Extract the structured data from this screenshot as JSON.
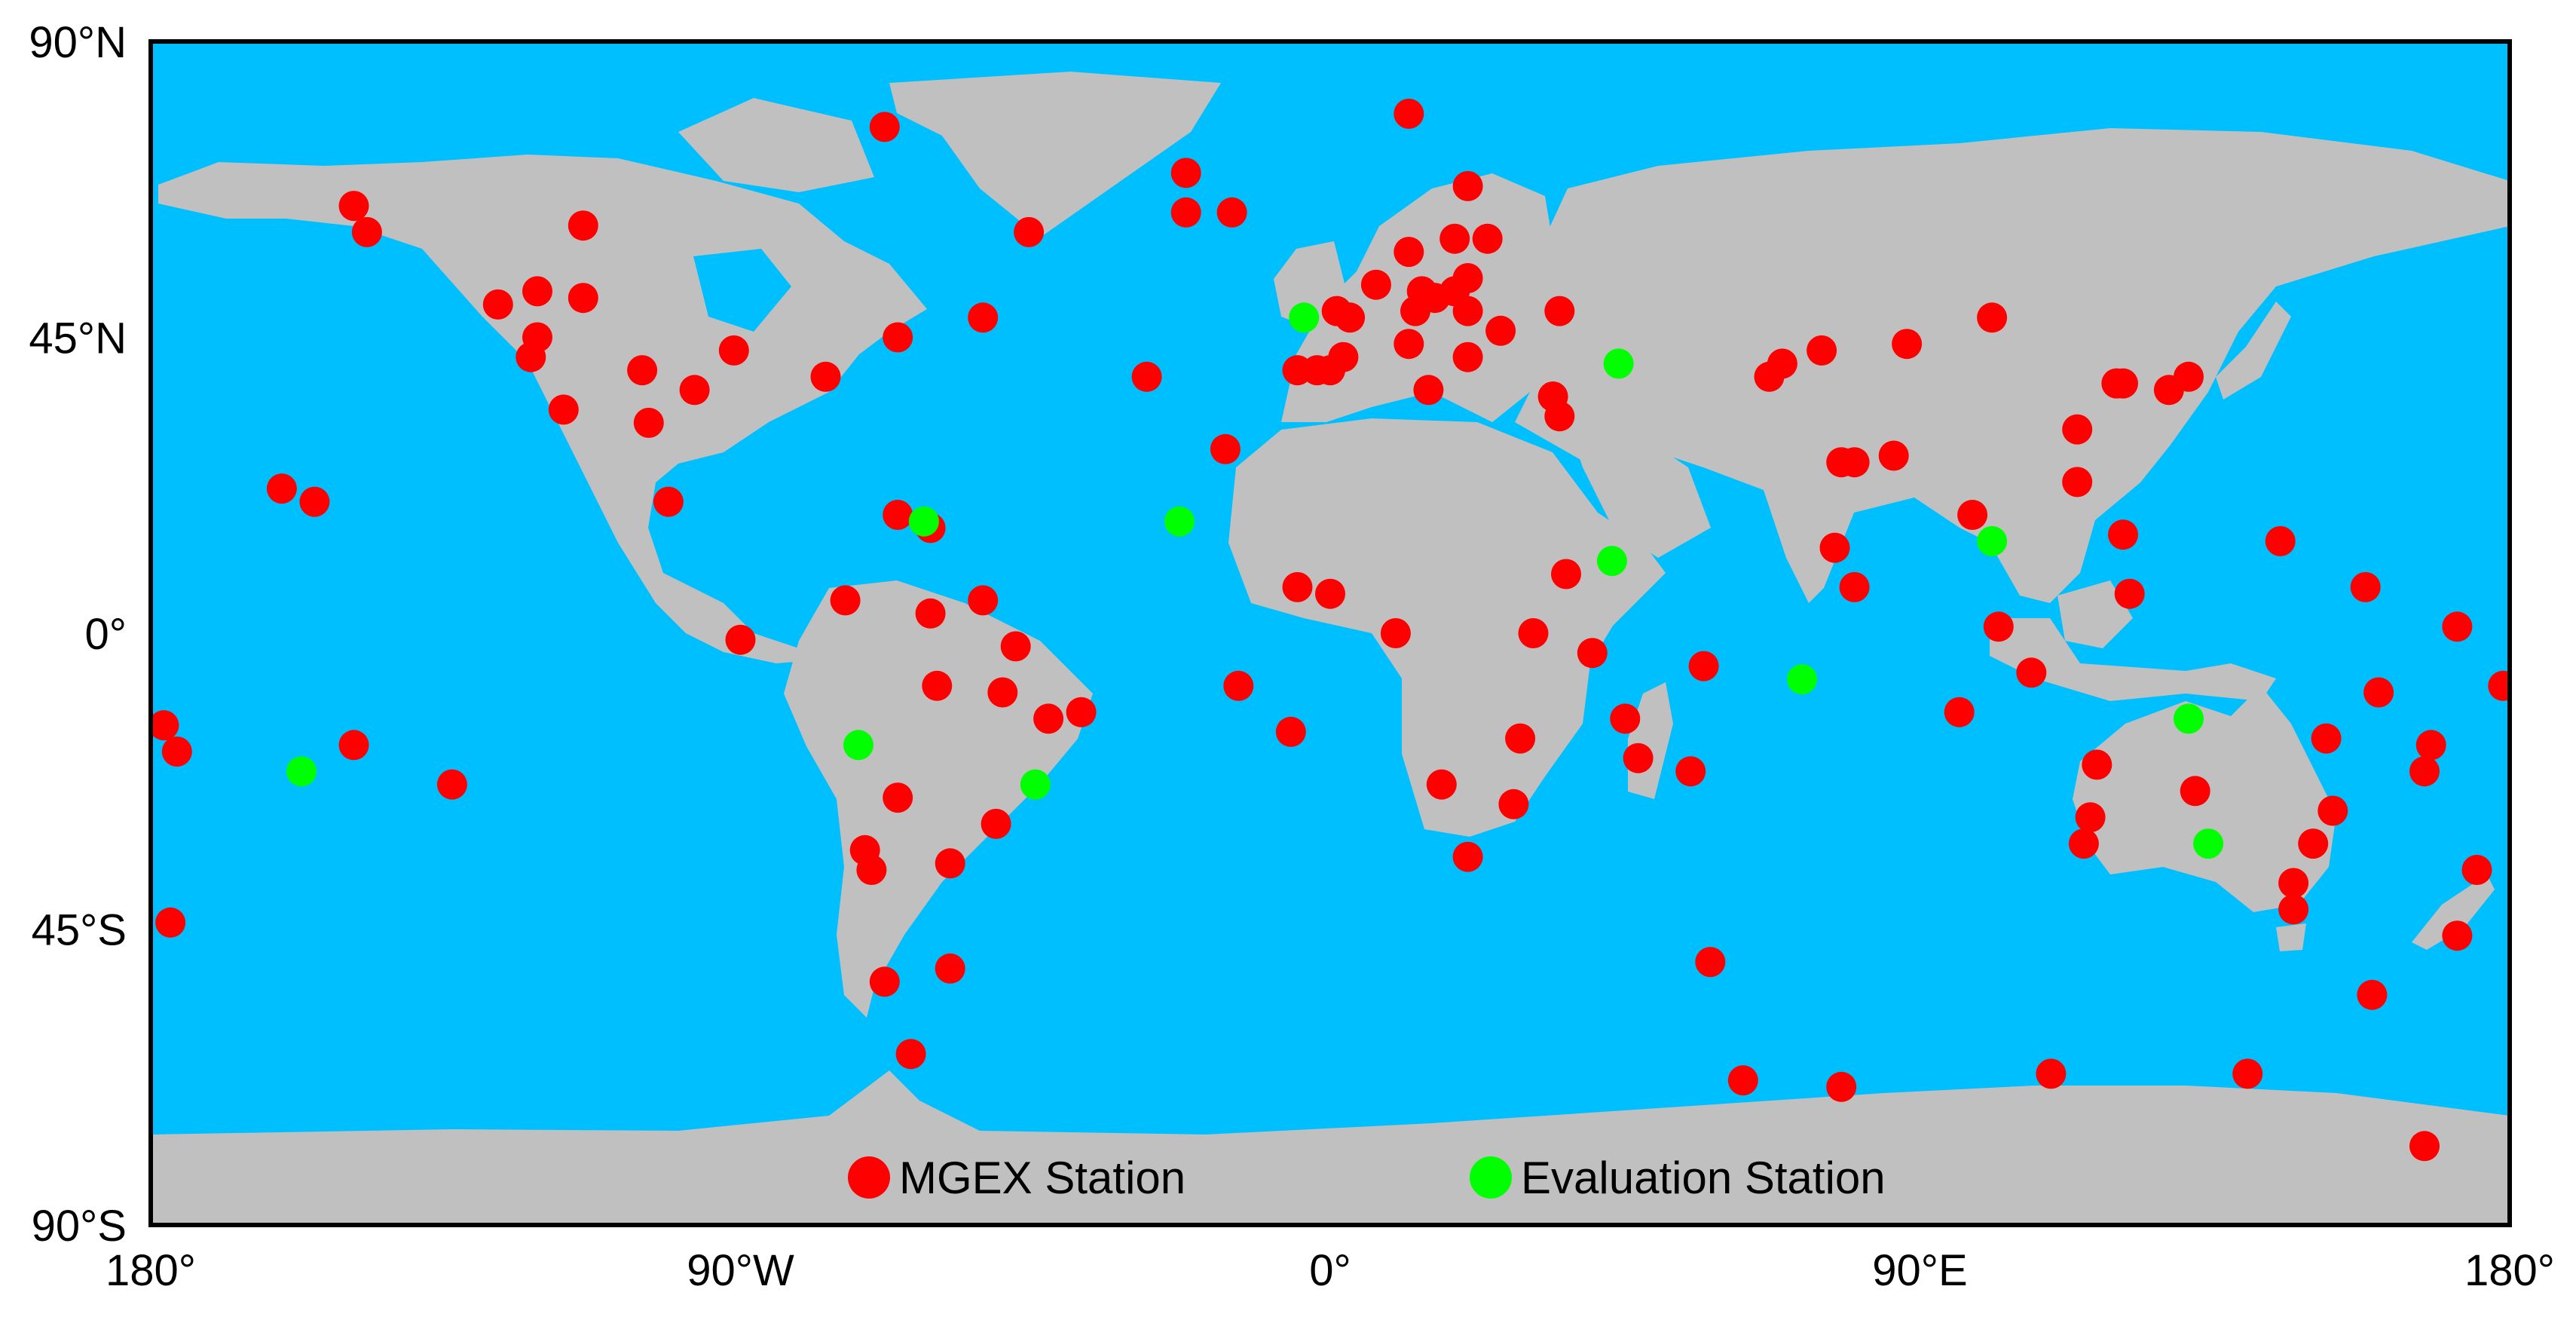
{
  "map": {
    "ocean_color": "#00bfff",
    "land_color": "#c0c0c0",
    "frame_color": "#000000"
  },
  "axes": {
    "y_ticks": [
      {
        "lat": 90,
        "label": "90°N"
      },
      {
        "lat": 45,
        "label": "45°N"
      },
      {
        "lat": 0,
        "label": "0°"
      },
      {
        "lat": -45,
        "label": "45°S"
      },
      {
        "lat": -90,
        "label": "90°S"
      }
    ],
    "x_ticks": [
      {
        "lon": -180,
        "label": "180°"
      },
      {
        "lon": -90,
        "label": "90°W"
      },
      {
        "lon": 0,
        "label": "0°"
      },
      {
        "lon": 90,
        "label": "90°E"
      },
      {
        "lon": 180,
        "label": "180°"
      }
    ]
  },
  "legend": {
    "items": [
      {
        "label": "MGEX Station",
        "color": "#ff0000"
      },
      {
        "label": "Evaluation Station",
        "color": "#00ff00"
      }
    ]
  },
  "stations": {
    "mgex": [
      [
        -149,
        65
      ],
      [
        -147,
        61
      ],
      [
        -127,
        50
      ],
      [
        -121,
        52
      ],
      [
        -114,
        62
      ],
      [
        -114,
        51
      ],
      [
        -121,
        45
      ],
      [
        -122,
        42
      ],
      [
        -117,
        34
      ],
      [
        -105,
        40
      ],
      [
        -104,
        32
      ],
      [
        -91,
        43
      ],
      [
        -97,
        37
      ],
      [
        -101,
        20
      ],
      [
        -77,
        39
      ],
      [
        -66,
        45
      ],
      [
        -53,
        48
      ],
      [
        -46,
        61
      ],
      [
        -68,
        77
      ],
      [
        -22,
        70
      ],
      [
        -22,
        64
      ],
      [
        -15,
        64
      ],
      [
        -155,
        20
      ],
      [
        -160,
        22
      ],
      [
        -178,
        -14
      ],
      [
        -176,
        -18
      ],
      [
        -149,
        -17
      ],
      [
        -134,
        -23
      ],
      [
        -177,
        -44
      ],
      [
        -90,
        -1
      ],
      [
        -74,
        5
      ],
      [
        -66,
        18
      ],
      [
        -61,
        16
      ],
      [
        -61,
        3
      ],
      [
        -53,
        5
      ],
      [
        -60,
        -8
      ],
      [
        -48,
        -2
      ],
      [
        -43,
        -13
      ],
      [
        -38,
        -12
      ],
      [
        -50,
        -9
      ],
      [
        -66,
        -25
      ],
      [
        -71,
        -33
      ],
      [
        -70,
        -36
      ],
      [
        -58,
        -35
      ],
      [
        -51,
        -29
      ],
      [
        -68,
        -53
      ],
      [
        -58,
        -51
      ],
      [
        -64,
        -64
      ],
      [
        -28,
        39
      ],
      [
        -16,
        28
      ],
      [
        -14,
        -8
      ],
      [
        -6,
        -15
      ],
      [
        -5,
        40
      ],
      [
        -2,
        40
      ],
      [
        0,
        40
      ],
      [
        2,
        42
      ],
      [
        1,
        49
      ],
      [
        3,
        48
      ],
      [
        7,
        53
      ],
      [
        12,
        58
      ],
      [
        19,
        60
      ],
      [
        24,
        60
      ],
      [
        21,
        68
      ],
      [
        12,
        79
      ],
      [
        12,
        44
      ],
      [
        13,
        49
      ],
      [
        16,
        51
      ],
      [
        19,
        52
      ],
      [
        21,
        54
      ],
      [
        21,
        49
      ],
      [
        14,
        52
      ],
      [
        26,
        46
      ],
      [
        21,
        42
      ],
      [
        15,
        37
      ],
      [
        34,
        36
      ],
      [
        35,
        33
      ],
      [
        35,
        49
      ],
      [
        -5,
        7
      ],
      [
        0,
        6
      ],
      [
        10,
        0
      ],
      [
        31,
        0
      ],
      [
        36,
        9
      ],
      [
        40,
        -3
      ],
      [
        45,
        -13
      ],
      [
        47,
        -19
      ],
      [
        55,
        -21
      ],
      [
        57,
        -5
      ],
      [
        29,
        -16
      ],
      [
        28,
        -26
      ],
      [
        17,
        -23
      ],
      [
        21,
        -34
      ],
      [
        67,
        39
      ],
      [
        69,
        41
      ],
      [
        75,
        43
      ],
      [
        88,
        44
      ],
      [
        101,
        48
      ],
      [
        80,
        26
      ],
      [
        78,
        26
      ],
      [
        86,
        27
      ],
      [
        77,
        13
      ],
      [
        80,
        7
      ],
      [
        98,
        18
      ],
      [
        102,
        1
      ],
      [
        107,
        -6
      ],
      [
        96,
        -12
      ],
      [
        114,
        31
      ],
      [
        114,
        23
      ],
      [
        120,
        38
      ],
      [
        121,
        38
      ],
      [
        128,
        37
      ],
      [
        131,
        39
      ],
      [
        121,
        15
      ],
      [
        122,
        6
      ],
      [
        145,
        14
      ],
      [
        158,
        7
      ],
      [
        172,
        1
      ],
      [
        160,
        -9
      ],
      [
        179,
        -8
      ],
      [
        152,
        -16
      ],
      [
        153,
        -27
      ],
      [
        150,
        -32
      ],
      [
        147,
        -42
      ],
      [
        147,
        -38
      ],
      [
        132,
        -24
      ],
      [
        117,
        -20
      ],
      [
        116,
        -28
      ],
      [
        115,
        -32
      ],
      [
        167,
        -21
      ],
      [
        168,
        -17
      ],
      [
        175,
        -36
      ],
      [
        172,
        -46
      ],
      [
        159,
        -55
      ],
      [
        167,
        -78
      ],
      [
        58,
        -50
      ],
      [
        63,
        -68
      ],
      [
        78,
        -69
      ],
      [
        110,
        -67
      ],
      [
        140,
        -67
      ]
    ],
    "evaluation": [
      [
        -157,
        -21
      ],
      [
        -62,
        17
      ],
      [
        -23,
        17
      ],
      [
        -4,
        48
      ],
      [
        44,
        41
      ],
      [
        43,
        11
      ],
      [
        72,
        -7
      ],
      [
        101,
        14
      ],
      [
        -72,
        -17
      ],
      [
        -45,
        -23
      ],
      [
        131,
        -13
      ],
      [
        134,
        -32
      ]
    ]
  }
}
